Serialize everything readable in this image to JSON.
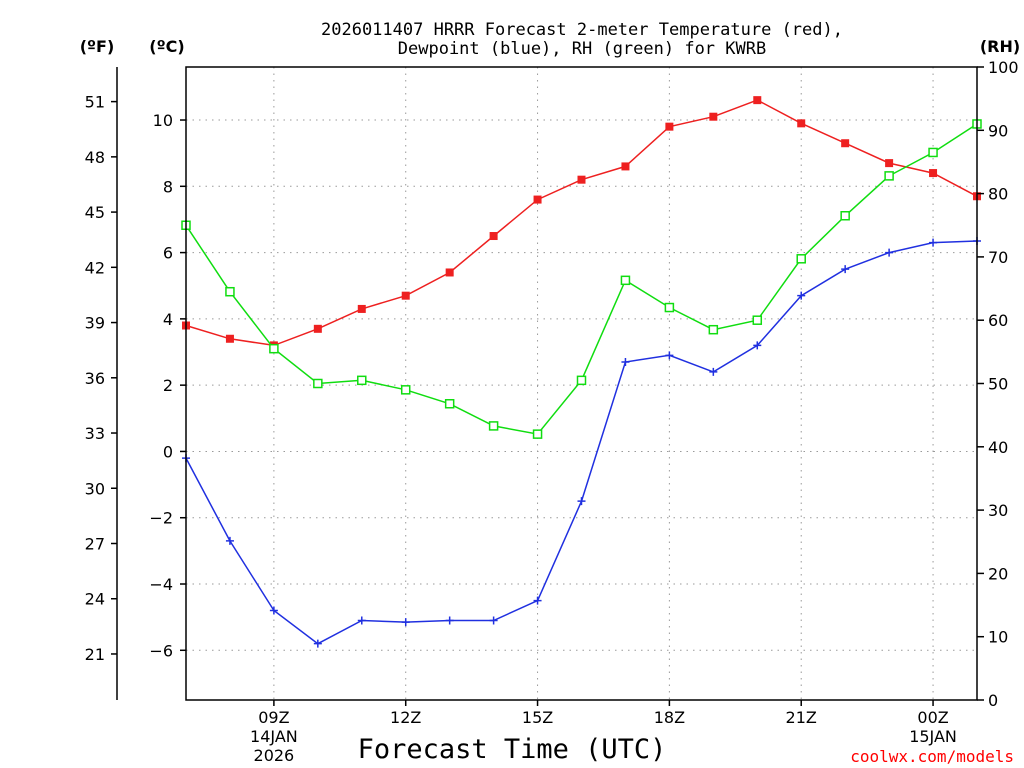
{
  "chart_data": {
    "type": "line",
    "title_line1": "2026011407 HRRR Forecast 2-meter Temperature (red),",
    "title_line2": "Dewpoint (blue), RH (green) for KWRB",
    "xlabel": "Forecast Time (UTC)",
    "credit": "coolwx.com/models",
    "units": {
      "fahrenheit": "(ºF)",
      "celsius": "(ºC)",
      "rh": "(RH)"
    },
    "x": [
      7,
      8,
      9,
      10,
      11,
      12,
      13,
      14,
      15,
      16,
      17,
      18,
      19,
      20,
      21,
      22,
      23,
      24,
      25
    ],
    "xlim": [
      7,
      25
    ],
    "celsius_lim": [
      -7.5,
      11.6
    ],
    "rh_lim": [
      0,
      100
    ],
    "grid": true,
    "x_ticks": [
      {
        "x": 9,
        "lines": [
          "09Z",
          "14JAN",
          "2026"
        ]
      },
      {
        "x": 12,
        "lines": [
          "12Z"
        ]
      },
      {
        "x": 15,
        "lines": [
          "15Z"
        ]
      },
      {
        "x": 18,
        "lines": [
          "18Z"
        ]
      },
      {
        "x": 21,
        "lines": [
          "21Z"
        ]
      },
      {
        "x": 24,
        "lines": [
          "00Z",
          "15JAN"
        ]
      }
    ],
    "celsius_ticks": [
      -6,
      -4,
      -2,
      0,
      2,
      4,
      6,
      8,
      10
    ],
    "celsius_tick_labels": [
      "−6",
      "−4",
      "−2",
      "0",
      "2",
      "4",
      "6",
      "8",
      "10"
    ],
    "fahrenheit_ticks": [
      21,
      24,
      27,
      30,
      33,
      36,
      39,
      42,
      45,
      48,
      51
    ],
    "rh_ticks": [
      0,
      10,
      20,
      30,
      40,
      50,
      60,
      70,
      80,
      90,
      100
    ],
    "series": [
      {
        "name": "Temperature",
        "axis": "celsius",
        "color": "#ee2020",
        "marker": "filled-square",
        "values": [
          3.8,
          3.4,
          3.2,
          3.7,
          4.3,
          4.7,
          5.4,
          6.5,
          7.6,
          8.2,
          8.6,
          9.8,
          10.1,
          10.6,
          9.9,
          9.3,
          8.7,
          8.4,
          7.7
        ]
      },
      {
        "name": "Dewpoint",
        "axis": "celsius",
        "color": "#2030e0",
        "marker": "plus",
        "values": [
          -0.2,
          -2.7,
          -4.8,
          -5.8,
          -5.1,
          -5.15,
          -5.1,
          -5.1,
          -4.5,
          -1.5,
          2.7,
          2.9,
          2.4,
          3.2,
          4.7,
          5.5,
          6.0,
          6.3,
          6.35
        ]
      },
      {
        "name": "RH",
        "axis": "rh",
        "color": "#10dd10",
        "marker": "open-square",
        "values": [
          75,
          64.5,
          55.5,
          50,
          50.5,
          49,
          46.8,
          43.3,
          42,
          50.5,
          66.3,
          62,
          58.5,
          60,
          69.7,
          76.5,
          82.8,
          86.5,
          91
        ]
      }
    ]
  }
}
